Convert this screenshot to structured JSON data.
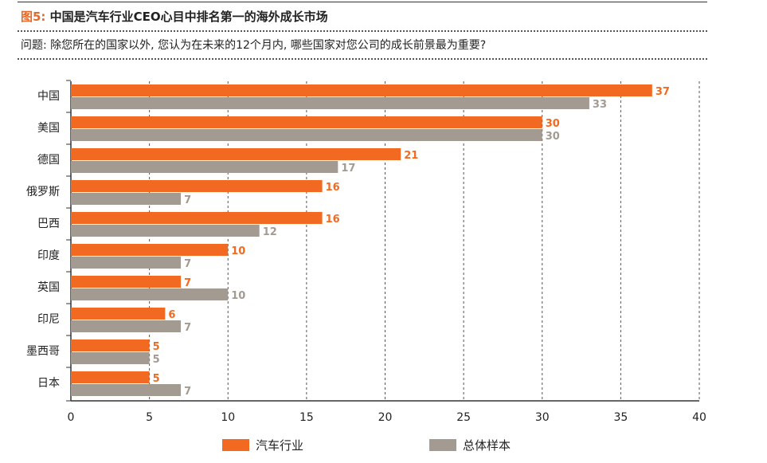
{
  "header": {
    "figure_label": "图5:",
    "title": "中国是汽车行业CEO心目中排名第一的海外成长市场",
    "question": "问题: 除您所在的国家以外, 您认为在未来的12个月内, 哪些国家对您公司的成长前景最为重要?"
  },
  "colors": {
    "auto": "#f26a21",
    "total": "#a39b92"
  },
  "chart_data": {
    "type": "bar",
    "orientation": "horizontal",
    "title": "中国是汽车行业CEO心目中排名第一的海外成长市场",
    "categories": [
      "中国",
      "美国",
      "德国",
      "俄罗斯",
      "巴西",
      "印度",
      "英国",
      "印尼",
      "墨西哥",
      "日本"
    ],
    "series": [
      {
        "name": "汽车行业",
        "values": [
          37,
          30,
          21,
          16,
          16,
          10,
          7,
          6,
          5,
          5
        ]
      },
      {
        "name": "总体样本",
        "values": [
          33,
          30,
          17,
          7,
          12,
          7,
          10,
          7,
          5,
          7
        ]
      }
    ],
    "xlim": [
      0,
      40
    ],
    "xticks": [
      0,
      5,
      10,
      15,
      20,
      25,
      30,
      35,
      40
    ],
    "grid": "vertical-dashed",
    "legend_position": "bottom"
  }
}
